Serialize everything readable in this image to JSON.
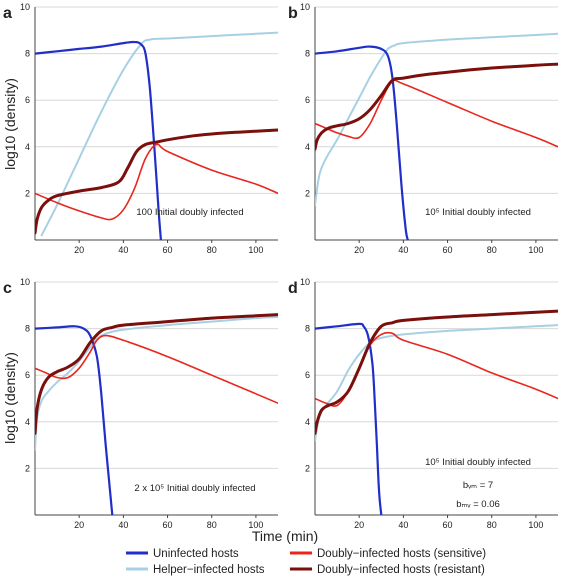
{
  "colors": {
    "uninfected": "#1f2fc8",
    "helper": "#a8d0e4",
    "sensitive": "#e8261d",
    "resistant": "#7a0f0c",
    "grid": "#d8d8d8"
  },
  "axes": {
    "ylabel": "log10 (density)",
    "xlabel": "Time (min)"
  },
  "legend": [
    {
      "key": "uninfected",
      "label": "Uninfected hosts"
    },
    {
      "key": "helper",
      "label": "Helper−infected hosts"
    },
    {
      "key": "sensitive",
      "label": "Doubly−infected hosts (sensitive)"
    },
    {
      "key": "resistant",
      "label": "Doubly−infected hosts (resistant)"
    }
  ],
  "chart_data": [
    {
      "type": "line",
      "panel": "a",
      "annotation": [
        "100 Initial doubly infected"
      ],
      "xlim": [
        0,
        110
      ],
      "ylim": [
        0,
        10
      ],
      "xticks": [
        20,
        40,
        60,
        80,
        100
      ],
      "yticks": [
        2,
        4,
        6,
        8,
        10
      ],
      "grid": true,
      "series": [
        {
          "name": "Uninfected hosts",
          "key": "uninfected",
          "x": [
            0,
            10,
            20,
            30,
            40,
            45,
            48,
            50,
            52,
            54,
            56,
            57
          ],
          "y": [
            8.0,
            8.1,
            8.2,
            8.3,
            8.45,
            8.5,
            8.4,
            8.0,
            6.5,
            4.0,
            1.2,
            0
          ]
        },
        {
          "name": "Helper-infected hosts",
          "key": "helper",
          "x": [
            3,
            10,
            20,
            30,
            40,
            48,
            52,
            60,
            80,
            100,
            110
          ],
          "y": [
            0.2,
            1.5,
            3.5,
            5.5,
            7.3,
            8.4,
            8.6,
            8.65,
            8.75,
            8.85,
            8.9
          ]
        },
        {
          "name": "Doubly-infected hosts (sensitive)",
          "key": "sensitive",
          "x": [
            0,
            10,
            20,
            30,
            35,
            40,
            45,
            50,
            55,
            60,
            80,
            100,
            110
          ],
          "y": [
            2.0,
            1.6,
            1.25,
            0.95,
            0.9,
            1.3,
            2.2,
            3.5,
            4.1,
            3.8,
            3.0,
            2.4,
            2.0
          ]
        },
        {
          "name": "Doubly-infected hosts (resistant)",
          "key": "resistant",
          "x": [
            0,
            1,
            3,
            6,
            10,
            20,
            30,
            38,
            42,
            46,
            50,
            55,
            60,
            70,
            80,
            90,
            100,
            110
          ],
          "y": [
            0.3,
            0.9,
            1.4,
            1.7,
            1.9,
            2.1,
            2.25,
            2.5,
            3.1,
            3.8,
            4.1,
            4.2,
            4.3,
            4.45,
            4.55,
            4.62,
            4.67,
            4.72
          ]
        }
      ]
    },
    {
      "type": "line",
      "panel": "b",
      "annotation": [
        "10⁵ Initial doubly infected"
      ],
      "xlim": [
        0,
        110
      ],
      "ylim": [
        0,
        10
      ],
      "xticks": [
        20,
        40,
        60,
        80,
        100
      ],
      "yticks": [
        2,
        4,
        6,
        8,
        10
      ],
      "grid": true,
      "series": [
        {
          "name": "Uninfected hosts",
          "key": "uninfected",
          "x": [
            0,
            10,
            20,
            25,
            30,
            33,
            35,
            37,
            39,
            41,
            42
          ],
          "y": [
            8.0,
            8.1,
            8.25,
            8.3,
            8.2,
            7.9,
            7.0,
            5.0,
            2.5,
            0.5,
            0
          ]
        },
        {
          "name": "Helper-infected hosts",
          "key": "helper",
          "x": [
            0,
            2,
            5,
            10,
            15,
            20,
            25,
            30,
            33,
            36,
            40,
            60,
            80,
            100,
            110
          ],
          "y": [
            1.5,
            2.8,
            3.5,
            4.3,
            5.2,
            6.1,
            7.0,
            7.8,
            8.2,
            8.35,
            8.45,
            8.6,
            8.7,
            8.8,
            8.85
          ]
        },
        {
          "name": "Doubly-infected hosts (sensitive)",
          "key": "sensitive",
          "x": [
            0,
            5,
            10,
            15,
            20,
            25,
            30,
            35,
            40,
            60,
            80,
            100,
            110
          ],
          "y": [
            5.0,
            4.8,
            4.6,
            4.45,
            4.4,
            5.0,
            6.0,
            6.8,
            6.7,
            5.9,
            5.1,
            4.4,
            4.0
          ]
        },
        {
          "name": "Doubly-infected hosts (resistant)",
          "key": "resistant",
          "x": [
            0,
            1,
            3,
            6,
            10,
            15,
            20,
            25,
            30,
            35,
            40,
            50,
            60,
            70,
            80,
            90,
            100,
            110
          ],
          "y": [
            3.9,
            4.3,
            4.6,
            4.8,
            4.9,
            5.0,
            5.2,
            5.6,
            6.2,
            6.85,
            6.95,
            7.1,
            7.2,
            7.3,
            7.38,
            7.44,
            7.5,
            7.55
          ]
        }
      ]
    },
    {
      "type": "line",
      "panel": "c",
      "annotation": [
        "2 x 10⁵ Initial doubly infected"
      ],
      "xlim": [
        0,
        110
      ],
      "ylim": [
        0,
        10
      ],
      "xticks": [
        20,
        40,
        60,
        80,
        100
      ],
      "yticks": [
        2,
        4,
        6,
        8,
        10
      ],
      "grid": true,
      "series": [
        {
          "name": "Uninfected hosts",
          "key": "uninfected",
          "x": [
            0,
            10,
            18,
            22,
            25,
            28,
            30,
            32,
            34,
            35
          ],
          "y": [
            8.0,
            8.05,
            8.1,
            8.0,
            7.7,
            6.8,
            5.2,
            3.0,
            1.0,
            0
          ]
        },
        {
          "name": "Helper-infected hosts",
          "key": "helper",
          "x": [
            0,
            1,
            3,
            6,
            10,
            15,
            20,
            25,
            30,
            40,
            60,
            80,
            100,
            110
          ],
          "y": [
            2.8,
            4.2,
            4.9,
            5.3,
            5.7,
            6.1,
            6.6,
            7.2,
            7.7,
            7.95,
            8.15,
            8.3,
            8.45,
            8.5
          ]
        },
        {
          "name": "Doubly-infected hosts (sensitive)",
          "key": "sensitive",
          "x": [
            0,
            5,
            10,
            15,
            20,
            25,
            28,
            32,
            40,
            60,
            80,
            100,
            110
          ],
          "y": [
            6.3,
            6.1,
            5.9,
            5.9,
            6.3,
            7.0,
            7.5,
            7.7,
            7.5,
            6.8,
            6.0,
            5.2,
            4.8
          ]
        },
        {
          "name": "Doubly-infected hosts (resistant)",
          "key": "resistant",
          "x": [
            0,
            1,
            3,
            6,
            10,
            15,
            20,
            25,
            30,
            35,
            40,
            60,
            80,
            100,
            110
          ],
          "y": [
            3.5,
            4.6,
            5.4,
            5.9,
            6.15,
            6.35,
            6.7,
            7.4,
            7.9,
            8.05,
            8.15,
            8.3,
            8.45,
            8.55,
            8.6
          ]
        }
      ]
    },
    {
      "type": "line",
      "panel": "d",
      "annotation": [
        "10⁵ Initial doubly infected",
        "bᵥₘ = 7",
        "bₘᵥ = 0.06"
      ],
      "xlim": [
        0,
        110
      ],
      "ylim": [
        0,
        10
      ],
      "xticks": [
        20,
        40,
        60,
        80,
        100
      ],
      "yticks": [
        2,
        4,
        6,
        8,
        10
      ],
      "grid": true,
      "series": [
        {
          "name": "Uninfected hosts",
          "key": "uninfected",
          "x": [
            0,
            10,
            20,
            22,
            24,
            26,
            27,
            28,
            29,
            30
          ],
          "y": [
            8.0,
            8.1,
            8.2,
            8.1,
            7.7,
            6.5,
            5.0,
            3.0,
            1.0,
            0
          ]
        },
        {
          "name": "Helper-infected hosts",
          "key": "helper",
          "x": [
            0,
            2,
            5,
            10,
            15,
            20,
            25,
            30,
            40,
            60,
            80,
            100,
            110
          ],
          "y": [
            3.2,
            4.2,
            4.7,
            5.3,
            6.2,
            6.9,
            7.4,
            7.6,
            7.75,
            7.9,
            8.0,
            8.1,
            8.15
          ]
        },
        {
          "name": "Doubly-infected hosts (sensitive)",
          "key": "sensitive",
          "x": [
            0,
            5,
            10,
            15,
            20,
            25,
            30,
            35,
            40,
            60,
            80,
            100,
            110
          ],
          "y": [
            5.0,
            4.8,
            4.7,
            5.3,
            6.3,
            7.3,
            7.75,
            7.8,
            7.5,
            6.9,
            6.1,
            5.4,
            5.0
          ]
        },
        {
          "name": "Doubly-infected hosts (resistant)",
          "key": "resistant",
          "x": [
            0,
            1,
            3,
            6,
            10,
            15,
            20,
            25,
            30,
            35,
            40,
            60,
            80,
            100,
            110
          ],
          "y": [
            3.5,
            4.0,
            4.5,
            4.7,
            4.85,
            5.3,
            6.3,
            7.4,
            8.1,
            8.25,
            8.35,
            8.5,
            8.6,
            8.7,
            8.75
          ]
        }
      ]
    }
  ]
}
